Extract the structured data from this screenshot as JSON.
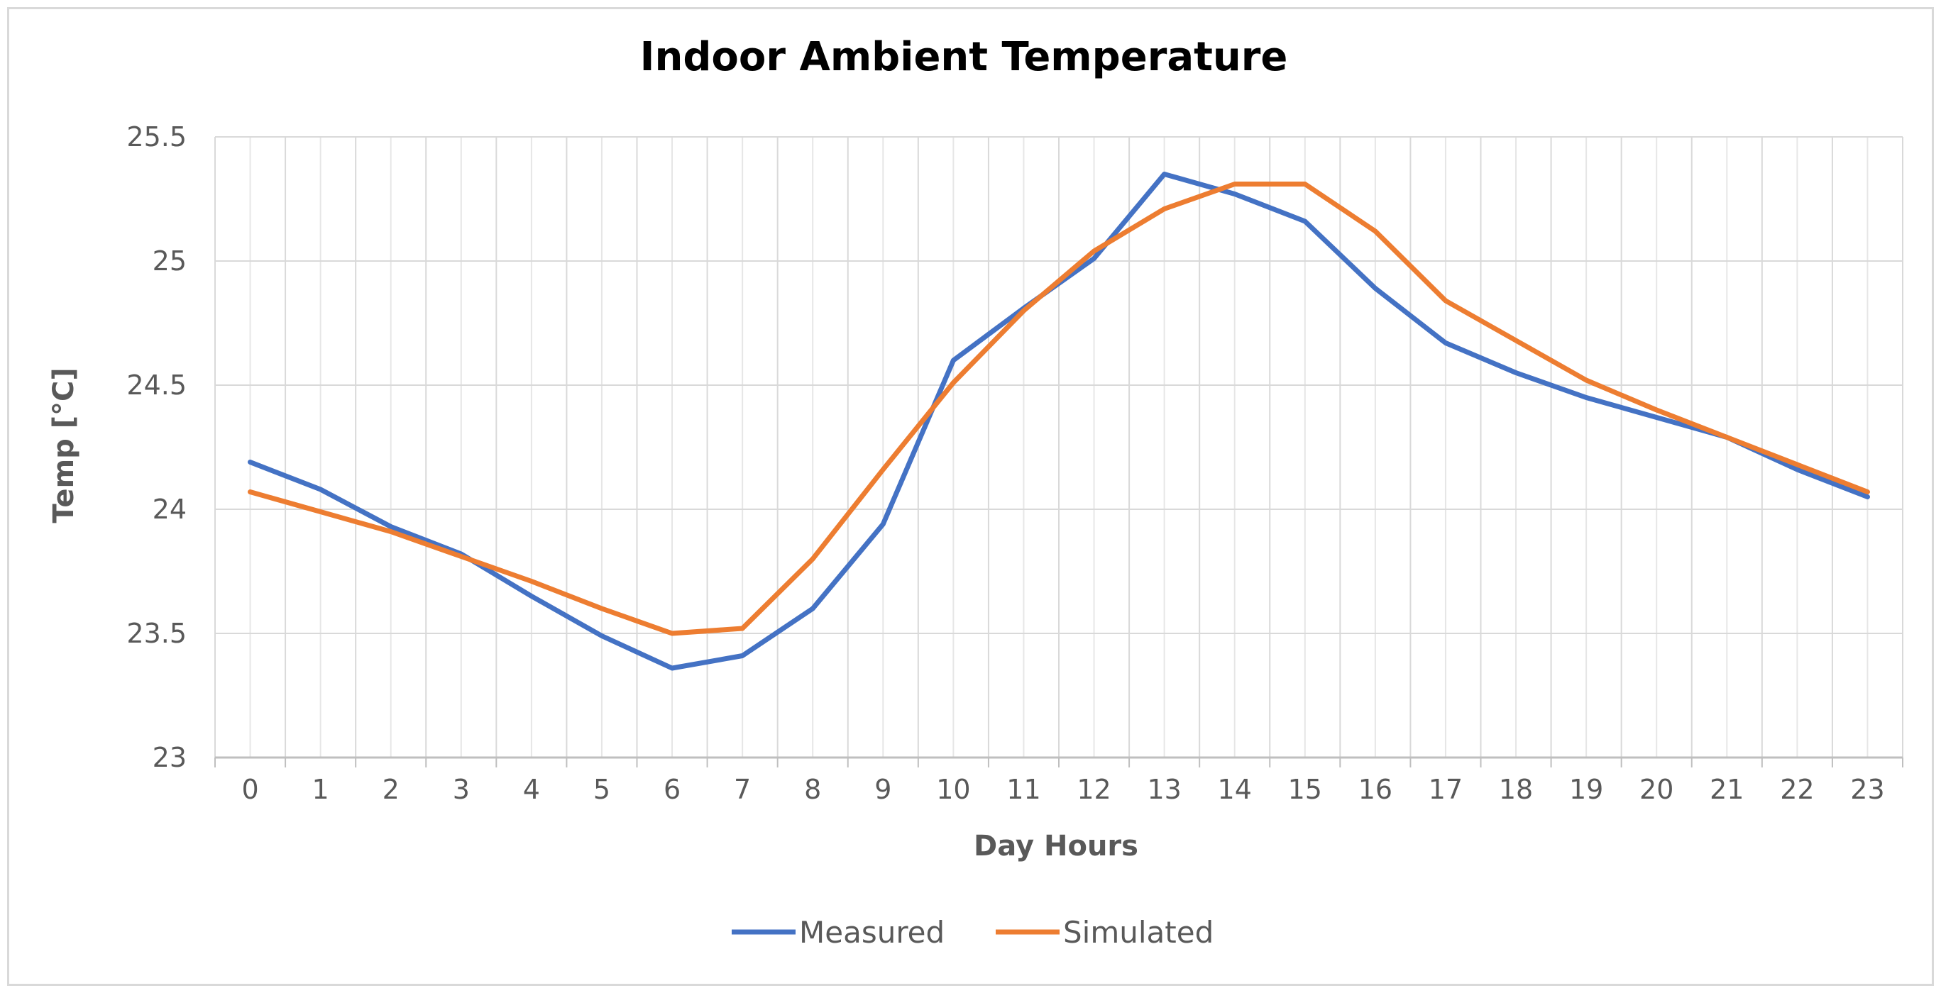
{
  "chart_data": {
    "type": "line",
    "title": "Indoor Ambient Temperature",
    "xlabel": "Day Hours",
    "ylabel": "Temp [°C]",
    "categories": [
      "0",
      "1",
      "2",
      "3",
      "4",
      "5",
      "6",
      "7",
      "8",
      "9",
      "10",
      "11",
      "12",
      "13",
      "14",
      "15",
      "16",
      "17",
      "18",
      "19",
      "20",
      "21",
      "22",
      "23"
    ],
    "y_ticks": [
      "23",
      "23.5",
      "24",
      "24.5",
      "25",
      "25.5"
    ],
    "ylim": [
      23,
      25.5
    ],
    "grid": true,
    "legend_position": "bottom",
    "series": [
      {
        "name": "Measured",
        "color": "#4472c4",
        "values": [
          24.19,
          24.08,
          23.93,
          23.82,
          23.65,
          23.49,
          23.36,
          23.41,
          23.6,
          23.94,
          24.6,
          24.81,
          25.01,
          25.35,
          25.27,
          25.16,
          24.89,
          24.67,
          24.55,
          24.45,
          24.37,
          24.29,
          24.16,
          24.05
        ]
      },
      {
        "name": "Simulated",
        "color": "#ed7d31",
        "values": [
          24.07,
          23.99,
          23.91,
          23.81,
          23.71,
          23.6,
          23.5,
          23.52,
          23.8,
          24.16,
          24.51,
          24.8,
          25.04,
          25.21,
          25.31,
          25.31,
          25.12,
          24.84,
          24.68,
          24.52,
          24.4,
          24.29,
          24.18,
          24.07
        ]
      }
    ]
  }
}
